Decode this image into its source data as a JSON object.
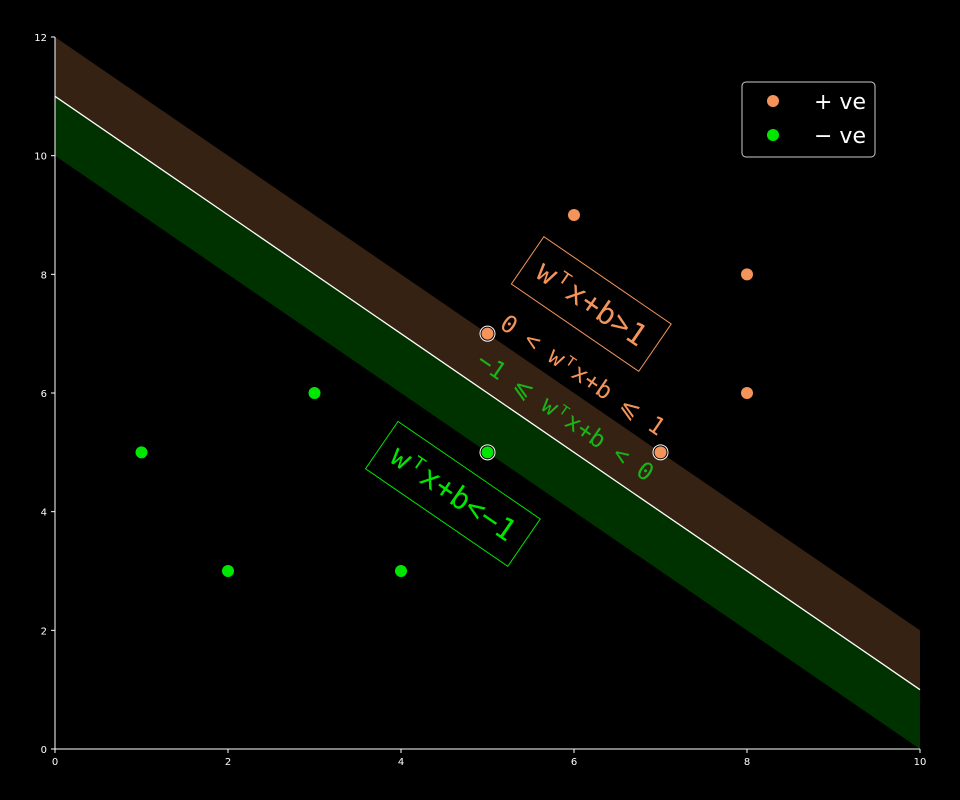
{
  "chart_data": {
    "type": "scatter",
    "title": "",
    "xlabel": "",
    "ylabel": "",
    "xlim": [
      0,
      10
    ],
    "ylim": [
      0,
      12
    ],
    "x_ticks": [
      "0",
      "2",
      "4",
      "6",
      "8",
      "10"
    ],
    "y_ticks": [
      "0",
      "2",
      "4",
      "6",
      "8",
      "10",
      "12"
    ],
    "grid": false,
    "legend_position": "top-right",
    "series": [
      {
        "name": "+ ve",
        "color": "#f4945a",
        "points": [
          [
            5,
            7
          ],
          [
            6,
            9
          ],
          [
            7,
            5
          ],
          [
            8,
            8
          ],
          [
            8,
            6
          ]
        ],
        "support_vectors": [
          [
            5,
            7
          ],
          [
            7,
            5
          ]
        ]
      },
      {
        "name": "− ve",
        "color": "#00e600",
        "points": [
          [
            1,
            5
          ],
          [
            2,
            3
          ],
          [
            3,
            6
          ],
          [
            4,
            3
          ],
          [
            5,
            5
          ]
        ],
        "support_vectors": [
          [
            5,
            5
          ]
        ]
      }
    ],
    "decision_boundary": {
      "slope": -1,
      "intercept": 11,
      "color": "#ffffff"
    },
    "positive_margin": {
      "upper_intercept": 12,
      "lower_intercept": 11,
      "color": "#362213"
    },
    "negative_margin": {
      "upper_intercept": 11,
      "lower_intercept": 10,
      "color": "#003200"
    },
    "annotations": [
      {
        "text": "wᵀx+b>1",
        "x": 6.2,
        "y": 7.5,
        "color": "#f4945a",
        "boxed": true,
        "size": 30
      },
      {
        "text": "0 < wᵀx+b ⩽ 1",
        "x": 6.1,
        "y": 6.3,
        "color": "#f4945a",
        "boxed": false,
        "size": 24
      },
      {
        "text": "−1 ⩽ wᵀx+b < 0",
        "x": 5.9,
        "y": 5.6,
        "color": "#17b517",
        "boxed": false,
        "size": 24
      },
      {
        "text": "wᵀx+b<−1",
        "x": 4.6,
        "y": 4.3,
        "color": "#00e600",
        "boxed": true,
        "size": 30
      }
    ]
  }
}
